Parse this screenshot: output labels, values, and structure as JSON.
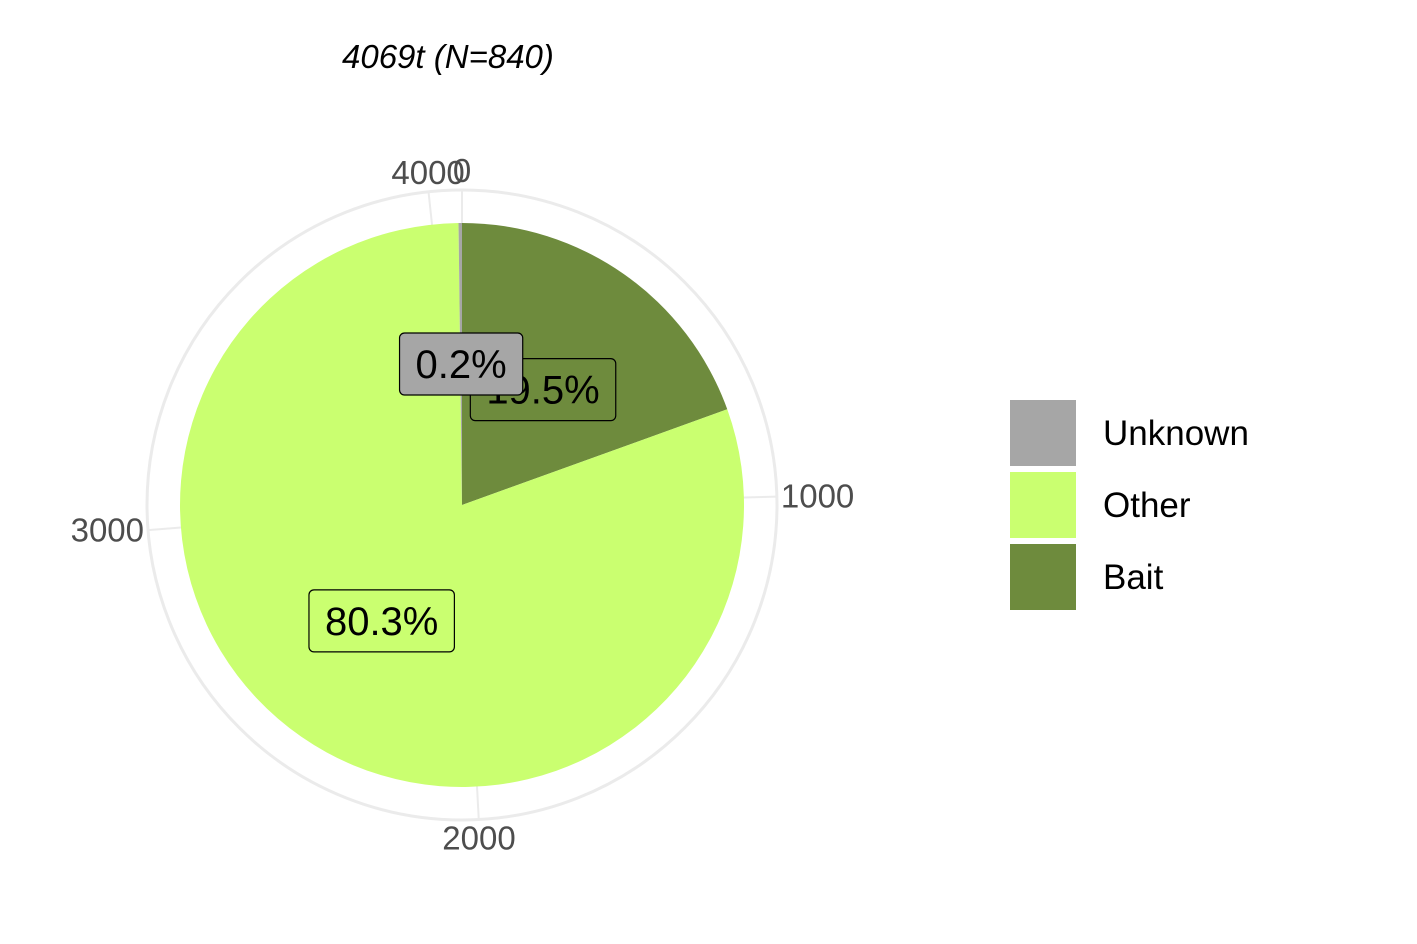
{
  "chart_data": {
    "type": "pie",
    "title": "4069t (N=840)",
    "total": 4069,
    "slices": [
      {
        "name": "Bait",
        "value": 793,
        "label": "19.5%",
        "color": "#6e8b3d"
      },
      {
        "name": "Other",
        "value": 3268,
        "label": "80.3%",
        "color": "#caff70"
      },
      {
        "name": "Unknown",
        "value": 8,
        "label": "0.2%",
        "color": "#a6a6a6"
      }
    ],
    "theta_axis": {
      "ticks": [
        0,
        1000,
        2000,
        3000,
        4000
      ],
      "tick_labels": [
        "0",
        "1000",
        "2000",
        "3000",
        "4000"
      ]
    },
    "legend": {
      "placement": "right",
      "entries": [
        {
          "name": "Unknown",
          "color": "#a6a6a6"
        },
        {
          "name": "Other",
          "color": "#caff70"
        },
        {
          "name": "Bait",
          "color": "#6e8b3d"
        }
      ]
    },
    "grid": true,
    "grid_color": "#ebebeb"
  }
}
